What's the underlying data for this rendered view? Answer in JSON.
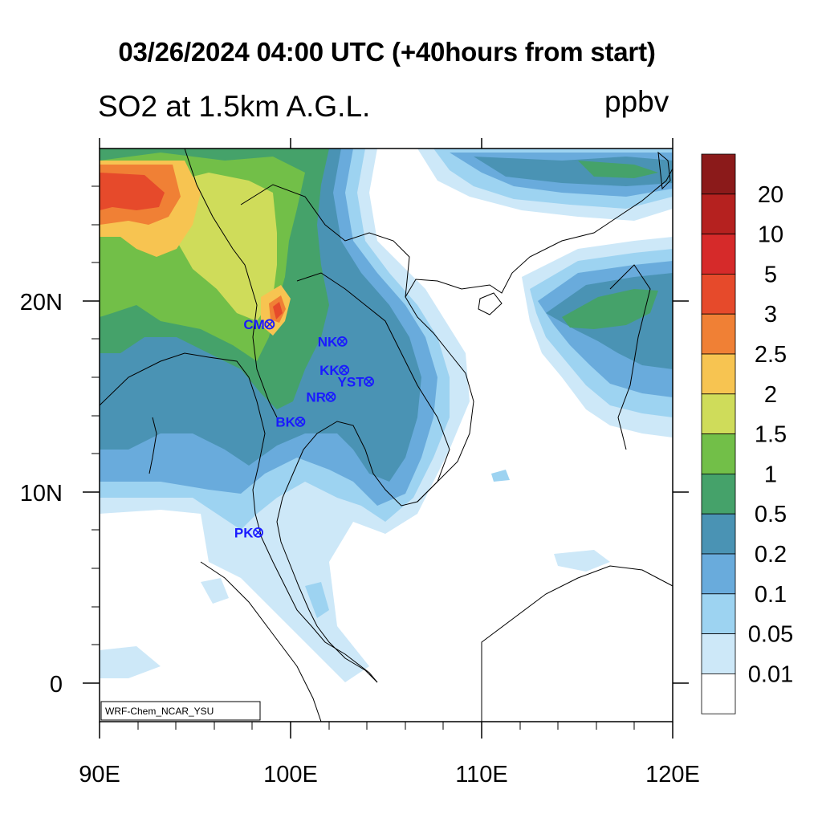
{
  "header": {
    "title": "03/26/2024 04:00 UTC (+40hours from start)",
    "subtitle": "SO2 at 1.5km A.G.L.",
    "units": "ppbv"
  },
  "axes": {
    "x_ticks": [
      "90E",
      "100E",
      "110E",
      "120E"
    ],
    "y_ticks": [
      "20N",
      "10N",
      "0"
    ],
    "lon_range": [
      90,
      120
    ],
    "lat_range": [
      -2,
      28
    ]
  },
  "colorbar": {
    "labels": [
      "20",
      "10",
      "5",
      "3",
      "2.5",
      "2",
      "1.5",
      "1",
      "0.5",
      "0.2",
      "0.1",
      "0.05",
      "0.01"
    ],
    "colors": [
      "#8b1a1a",
      "#b5211f",
      "#d62a2a",
      "#e64a2b",
      "#f08035",
      "#f7c451",
      "#cfdc5a",
      "#72bf48",
      "#45a26a",
      "#4a93b4",
      "#69abdc",
      "#9dd3f1",
      "#cde8f8",
      "#ffffff"
    ]
  },
  "sites": [
    {
      "code": "CM",
      "lon": 98.9,
      "lat": 18.8
    },
    {
      "code": "NK",
      "lon": 102.7,
      "lat": 17.9
    },
    {
      "code": "KK",
      "lon": 102.8,
      "lat": 16.4
    },
    {
      "code": "YST",
      "lon": 104.1,
      "lat": 15.8
    },
    {
      "code": "NR",
      "lon": 102.1,
      "lat": 15.0
    },
    {
      "code": "BK",
      "lon": 100.5,
      "lat": 13.7
    },
    {
      "code": "PK",
      "lon": 98.3,
      "lat": 7.9
    }
  ],
  "footer": {
    "credit": "WRF-Chem_NCAR_YSU"
  }
}
